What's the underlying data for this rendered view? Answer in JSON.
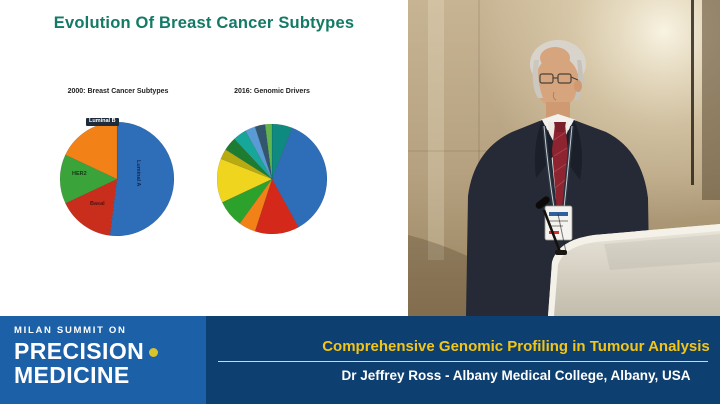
{
  "slide": {
    "title": "Evolution Of Breast Cancer Subtypes",
    "title_color": "#127a66",
    "charts": [
      {
        "caption": "2000: Breast Cancer Subtypes"
      },
      {
        "caption": "2016: Genomic Drivers"
      }
    ],
    "pie1_labels": {
      "luminal_a": "Luminal A",
      "luminal_b": "Luminal B",
      "her2": "HER2",
      "basal": "Basal"
    }
  },
  "banner": {
    "logo": {
      "line1": "MILAN SUMMIT ON",
      "line2": "PRECISION",
      "line3": "MEDICINE",
      "dot_color": "#d8c42a"
    },
    "title": "Comprehensive Genomic Profiling in Tumour Analysis",
    "subtitle": "Dr Jeffrey Ross - Albany Medical College, Albany, USA",
    "title_color": "#f3c517",
    "left_bg": "#1c60a8",
    "right_bg": "#0d3f70"
  },
  "chart_data": [
    {
      "type": "pie",
      "title": "2000: Breast Cancer Subtypes",
      "legend_position": "none",
      "labels_legible": true,
      "segments": [
        {
          "label": "Luminal A",
          "value": 52,
          "color": "#2e6db8"
        },
        {
          "label": "Basal",
          "value": 16,
          "color": "#c92e1d"
        },
        {
          "label": "HER2",
          "value": 14,
          "color": "#3aa43a"
        },
        {
          "label": "Luminal B",
          "value": 18,
          "color": "#f28218"
        }
      ]
    },
    {
      "type": "pie",
      "title": "2016: Genomic Drivers",
      "legend_position": "none",
      "labels_legible": false,
      "segments": [
        {
          "label": "",
          "value": 6,
          "color": "#0e8a80"
        },
        {
          "label": "",
          "value": 36,
          "color": "#2e6db8"
        },
        {
          "label": "",
          "value": 13,
          "color": "#d3281a"
        },
        {
          "label": "",
          "value": 5,
          "color": "#f28218"
        },
        {
          "label": "",
          "value": 8,
          "color": "#2ca12c"
        },
        {
          "label": "",
          "value": 13,
          "color": "#f0d51f"
        },
        {
          "label": "",
          "value": 3,
          "color": "#b8ab12"
        },
        {
          "label": "",
          "value": 4,
          "color": "#1d7c31"
        },
        {
          "label": "",
          "value": 4,
          "color": "#17a79a"
        },
        {
          "label": "",
          "value": 3,
          "color": "#5b9bd5"
        },
        {
          "label": "",
          "value": 3,
          "color": "#33566f"
        },
        {
          "label": "",
          "value": 2,
          "color": "#62b54a"
        }
      ]
    }
  ]
}
